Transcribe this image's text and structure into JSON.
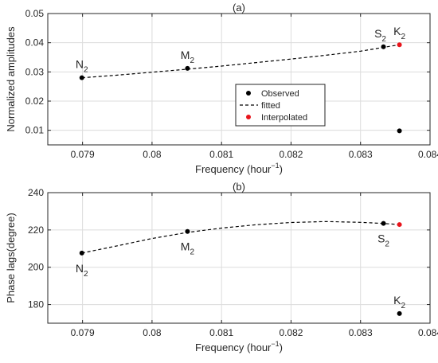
{
  "chart_data": [
    {
      "type": "scatter",
      "title": "(a)",
      "xlabel": "Frequency (hour",
      "xlabel_sup": "−1",
      "xlabel_close": ")",
      "ylabel": "Normalized amplitudes",
      "xlim": [
        0.0785,
        0.084
      ],
      "ylim": [
        0.005,
        0.05
      ],
      "xticks": [
        0.079,
        0.08,
        0.081,
        0.082,
        0.083,
        0.084
      ],
      "xtick_labels": [
        "0.079",
        "0.08",
        "0.081",
        "0.082",
        "0.083",
        "0.084"
      ],
      "yticks": [
        0.01,
        0.02,
        0.03,
        0.04,
        0.05
      ],
      "ytick_labels": [
        "0.01",
        "0.02",
        "0.03",
        "0.04",
        "0.05"
      ],
      "grid": true,
      "legend_position": "center-right",
      "series": [
        {
          "name": "Observed",
          "style": "marker",
          "color": "#000000",
          "x": [
            0.07899,
            0.08051,
            0.08333,
            0.08356
          ],
          "y": [
            0.028,
            0.0312,
            0.0386,
            0.0098
          ]
        },
        {
          "name": "fitted",
          "style": "dashed-line",
          "color": "#000000",
          "x": [
            0.07899,
            0.0795,
            0.08,
            0.0805,
            0.081,
            0.0815,
            0.082,
            0.0825,
            0.083,
            0.08356
          ],
          "y": [
            0.028,
            0.0289,
            0.0299,
            0.0309,
            0.032,
            0.0332,
            0.0344,
            0.0357,
            0.0371,
            0.0393
          ]
        },
        {
          "name": "Interpolated",
          "style": "marker",
          "color": "#e8141b",
          "x": [
            0.08356
          ],
          "y": [
            0.0393
          ]
        }
      ],
      "annotations": [
        {
          "base": "N",
          "sub": "2",
          "x": 0.07899,
          "y": 0.028,
          "anchor": "above"
        },
        {
          "base": "M",
          "sub": "2",
          "x": 0.08051,
          "y": 0.0312,
          "anchor": "above"
        },
        {
          "base": "S",
          "sub": "2",
          "x": 0.08333,
          "y": 0.0386,
          "anchor": "above-left"
        },
        {
          "base": "K",
          "sub": "2",
          "x": 0.08356,
          "y": 0.0393,
          "anchor": "above"
        }
      ]
    },
    {
      "type": "scatter",
      "title": "(b)",
      "xlabel": "Frequency (hour",
      "xlabel_sup": "−1",
      "xlabel_close": ")",
      "ylabel": "Phase lags(degree)",
      "xlim": [
        0.0785,
        0.084
      ],
      "ylim": [
        170,
        240
      ],
      "xticks": [
        0.079,
        0.08,
        0.081,
        0.082,
        0.083,
        0.084
      ],
      "xtick_labels": [
        "0.079",
        "0.08",
        "0.081",
        "0.082",
        "0.083",
        "0.084"
      ],
      "yticks": [
        180,
        200,
        220,
        240
      ],
      "ytick_labels": [
        "180",
        "200",
        "220",
        "240"
      ],
      "grid": true,
      "series": [
        {
          "name": "Observed",
          "style": "marker",
          "color": "#000000",
          "x": [
            0.07899,
            0.08051,
            0.08333,
            0.08356
          ],
          "y": [
            207.6,
            219.2,
            223.5,
            175.2
          ]
        },
        {
          "name": "fitted",
          "style": "dashed-line",
          "color": "#000000",
          "x": [
            0.07899,
            0.0795,
            0.08,
            0.0805,
            0.081,
            0.0815,
            0.082,
            0.0825,
            0.083,
            0.08333,
            0.08356
          ],
          "y": [
            207.6,
            211.5,
            215.4,
            218.6,
            221.0,
            222.8,
            224.0,
            224.5,
            224.1,
            223.5,
            222.9
          ]
        },
        {
          "name": "Interpolated",
          "style": "marker",
          "color": "#e8141b",
          "x": [
            0.08356
          ],
          "y": [
            222.9
          ]
        }
      ],
      "annotations": [
        {
          "base": "N",
          "sub": "2",
          "x": 0.07899,
          "y": 207.6,
          "anchor": "below"
        },
        {
          "base": "M",
          "sub": "2",
          "x": 0.08051,
          "y": 219.2,
          "anchor": "below"
        },
        {
          "base": "S",
          "sub": "2",
          "x": 0.08333,
          "y": 223.5,
          "anchor": "below"
        },
        {
          "base": "K",
          "sub": "2",
          "x": 0.08356,
          "y": 175.2,
          "anchor": "above"
        }
      ]
    }
  ],
  "legend": {
    "items": [
      {
        "label": "Observed",
        "style": "marker",
        "color": "#000000"
      },
      {
        "label": "fitted",
        "style": "dashed-line",
        "color": "#000000"
      },
      {
        "label": "Interpolated",
        "style": "marker",
        "color": "#e8141b"
      }
    ]
  }
}
